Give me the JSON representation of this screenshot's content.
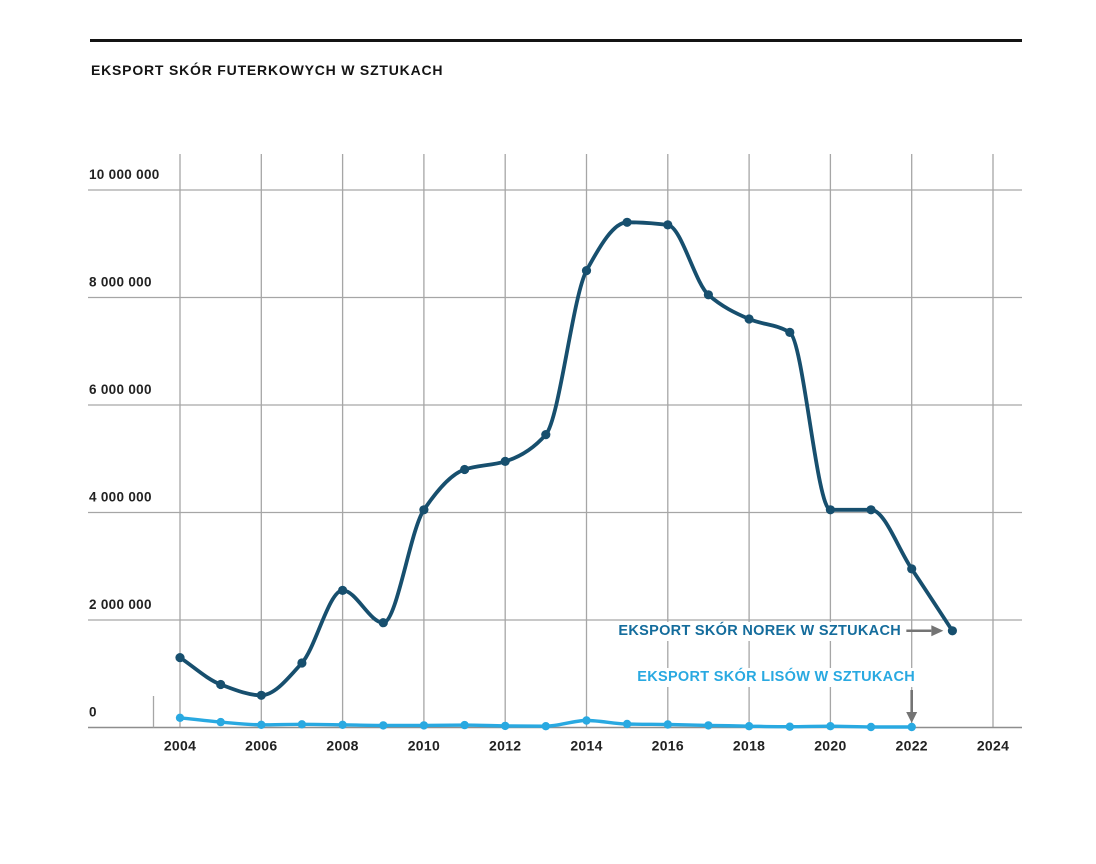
{
  "header": {
    "title": "EKSPORT SKÓR FUTERKOWYCH W SZTUKACH"
  },
  "chart_data": {
    "type": "line",
    "title": "EKSPORT SKÓR FUTERKOWYCH W SZTUKACH",
    "xlabel": "",
    "ylabel": "",
    "grid": true,
    "x": [
      2004,
      2005,
      2006,
      2007,
      2008,
      2009,
      2010,
      2011,
      2012,
      2013,
      2014,
      2015,
      2016,
      2017,
      2018,
      2019,
      2020,
      2021,
      2022,
      2023
    ],
    "series": [
      {
        "name": "EKSPORT SKÓR NOREK W SZTUKACH",
        "color": "#174f6e",
        "marker": "circle",
        "values": [
          1300000,
          800000,
          600000,
          1200000,
          2550000,
          1950000,
          4050000,
          4800000,
          4950000,
          5450000,
          8500000,
          9400000,
          9350000,
          8050000,
          7600000,
          7350000,
          4050000,
          4050000,
          2950000,
          1800000
        ]
      },
      {
        "name": "EKSPORT SKÓR LISÓW W SZTUKACH",
        "color": "#29a9e1",
        "marker": "circle",
        "values": [
          180000,
          100000,
          50000,
          60000,
          50000,
          40000,
          40000,
          45000,
          30000,
          25000,
          130000,
          65000,
          55000,
          40000,
          25000,
          15000,
          25000,
          10000,
          10000
        ]
      }
    ],
    "x_ticks": {
      "values": [
        2004,
        2006,
        2008,
        2010,
        2012,
        2014,
        2016,
        2018,
        2020,
        2022,
        2024
      ],
      "labels": [
        "2004",
        "2006",
        "2008",
        "2010",
        "2012",
        "2014",
        "2016",
        "2018",
        "2020",
        "2022",
        "2024"
      ]
    },
    "y_ticks": {
      "values": [
        0,
        2000000,
        4000000,
        6000000,
        8000000,
        10000000
      ],
      "labels": [
        "0",
        "2 000 000",
        "4 000 000",
        "6 000 000",
        "8 000 000",
        "10 000 000"
      ]
    },
    "xlim": [
      2001.7,
      2024.7
    ],
    "ylim": [
      0,
      10650000
    ],
    "legend_position": "inline-annotations",
    "annotations": [
      {
        "text": "EKSPORT SKÓR NOREK W SZTUKACH",
        "color": "#146c9c",
        "arrow": "right",
        "target_year": 2023,
        "series": "EKSPORT SKÓR NOREK W SZTUKACH"
      },
      {
        "text": "EKSPORT SKÓR LISÓW W SZTUKACH",
        "color": "#29a9e1",
        "arrow": "down",
        "target_year": 2022,
        "series": "EKSPORT SKÓR LISÓW W SZTUKACH"
      }
    ]
  },
  "colors": {
    "grid": "#a6a6a6",
    "axis": "#8e8e8e",
    "arrow": "#747474",
    "tick_text": "#222222",
    "title_text": "#141414",
    "background": "#ffffff"
  }
}
